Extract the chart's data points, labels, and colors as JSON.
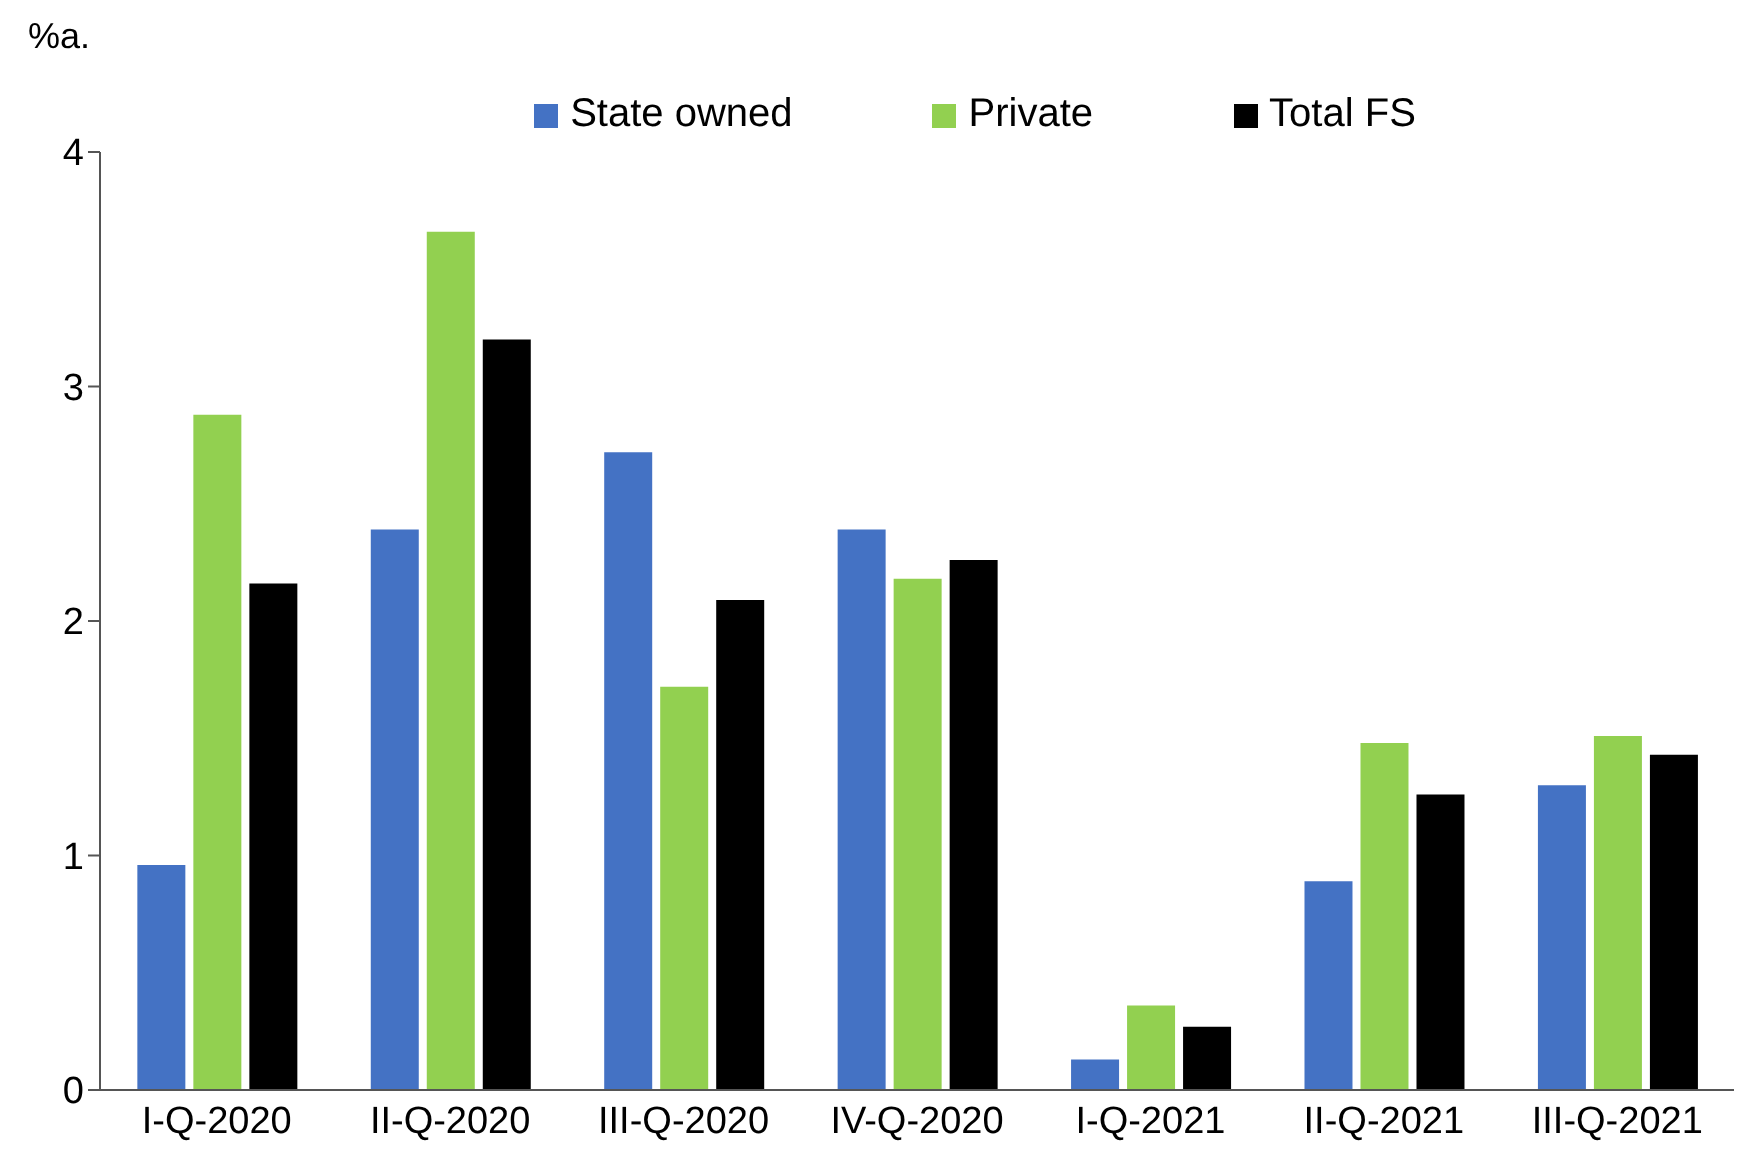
{
  "chart_data": {
    "type": "bar",
    "ylabel": "%a.",
    "categories": [
      "I-Q-2020",
      "II-Q-2020",
      "III-Q-2020",
      "IV-Q-2020",
      "I-Q-2021",
      "II-Q-2021",
      "III-Q-2021"
    ],
    "series": [
      {
        "name": "State owned",
        "color": "#4472c4",
        "values": [
          0.96,
          2.39,
          2.72,
          2.39,
          0.13,
          0.89,
          1.3
        ]
      },
      {
        "name": "Private",
        "color": "#92d050",
        "values": [
          2.88,
          3.66,
          1.72,
          2.18,
          0.36,
          1.48,
          1.51
        ]
      },
      {
        "name": "Total FS",
        "color": "#000000",
        "values": [
          2.16,
          3.2,
          2.09,
          2.26,
          0.27,
          1.26,
          1.43
        ]
      }
    ],
    "ylim": [
      0,
      4
    ],
    "yticks": [
      0,
      1,
      2,
      3,
      4
    ],
    "grid": false,
    "legend": "top"
  }
}
